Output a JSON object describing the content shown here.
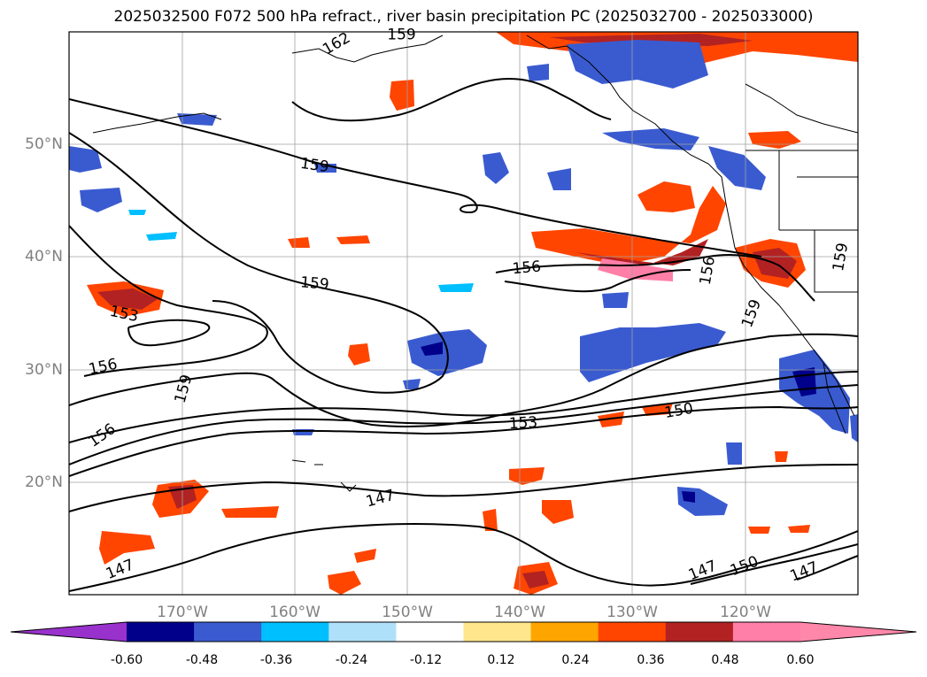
{
  "title": "2025032500 F072 500 hPa refract., river basin precipitation PC (2025032700 - 2025033000)",
  "map": {
    "lon_range": [
      -180,
      -110
    ],
    "lat_range": [
      10,
      60
    ],
    "lat_labels": [
      "50°N",
      "40°N",
      "30°N",
      "20°N"
    ],
    "lat_values": [
      50,
      40,
      30,
      20
    ],
    "lon_labels": [
      "170°W",
      "160°W",
      "150°W",
      "140°W",
      "130°W",
      "120°W"
    ],
    "lon_values": [
      -170,
      -160,
      -150,
      -140,
      -130,
      -120
    ],
    "contour_labels": [
      {
        "text": "162",
        "lon": -156.3,
        "lat": 59.0,
        "rot": -30
      },
      {
        "text": "159",
        "lon": -150.5,
        "lat": 59.8,
        "rot": 0
      },
      {
        "text": "159",
        "lon": -158.2,
        "lat": 48.2,
        "rot": 8
      },
      {
        "text": "159",
        "lon": -158.2,
        "lat": 37.7,
        "rot": 5
      },
      {
        "text": "156",
        "lon": -139.4,
        "lat": 39.1,
        "rot": -5
      },
      {
        "text": "153",
        "lon": -175.1,
        "lat": 35.0,
        "rot": 12
      },
      {
        "text": "156",
        "lon": -177.0,
        "lat": 30.3,
        "rot": -12
      },
      {
        "text": "159",
        "lon": -169.9,
        "lat": 28.3,
        "rot": -75
      },
      {
        "text": "156",
        "lon": -177.1,
        "lat": 24.2,
        "rot": -35
      },
      {
        "text": "153",
        "lon": -139.7,
        "lat": 25.3,
        "rot": -3
      },
      {
        "text": "150",
        "lon": -125.9,
        "lat": 26.4,
        "rot": -10
      },
      {
        "text": "147",
        "lon": -152.4,
        "lat": 18.6,
        "rot": -15
      },
      {
        "text": "147",
        "lon": -175.5,
        "lat": 12.3,
        "rot": -22
      },
      {
        "text": "147",
        "lon": -123.8,
        "lat": 12.2,
        "rot": -22
      },
      {
        "text": "150",
        "lon": -120.1,
        "lat": 12.6,
        "rot": -22
      },
      {
        "text": "147",
        "lon": -114.8,
        "lat": 12.1,
        "rot": -22
      },
      {
        "text": "159",
        "lon": -119.5,
        "lat": 35.0,
        "rot": -70
      },
      {
        "text": "156",
        "lon": -123.4,
        "lat": 38.8,
        "rot": -80
      },
      {
        "text": "159",
        "lon": -111.6,
        "lat": 40.0,
        "rot": -80
      }
    ]
  },
  "colorbar": {
    "ticks": [
      "-0.60",
      "-0.48",
      "-0.36",
      "-0.24",
      "-0.12",
      "0.12",
      "0.24",
      "0.36",
      "0.48",
      "0.60"
    ],
    "colors": {
      "under": "#9932cc",
      "bins": [
        "#00008b",
        "#3a5bd0",
        "#00bfff",
        "#afe0fa",
        "#ffffff",
        "#ffe68c",
        "#ffa500",
        "#ff4500",
        "#b22222",
        "#ff7fa8"
      ],
      "over": "#ff88aa"
    }
  }
}
